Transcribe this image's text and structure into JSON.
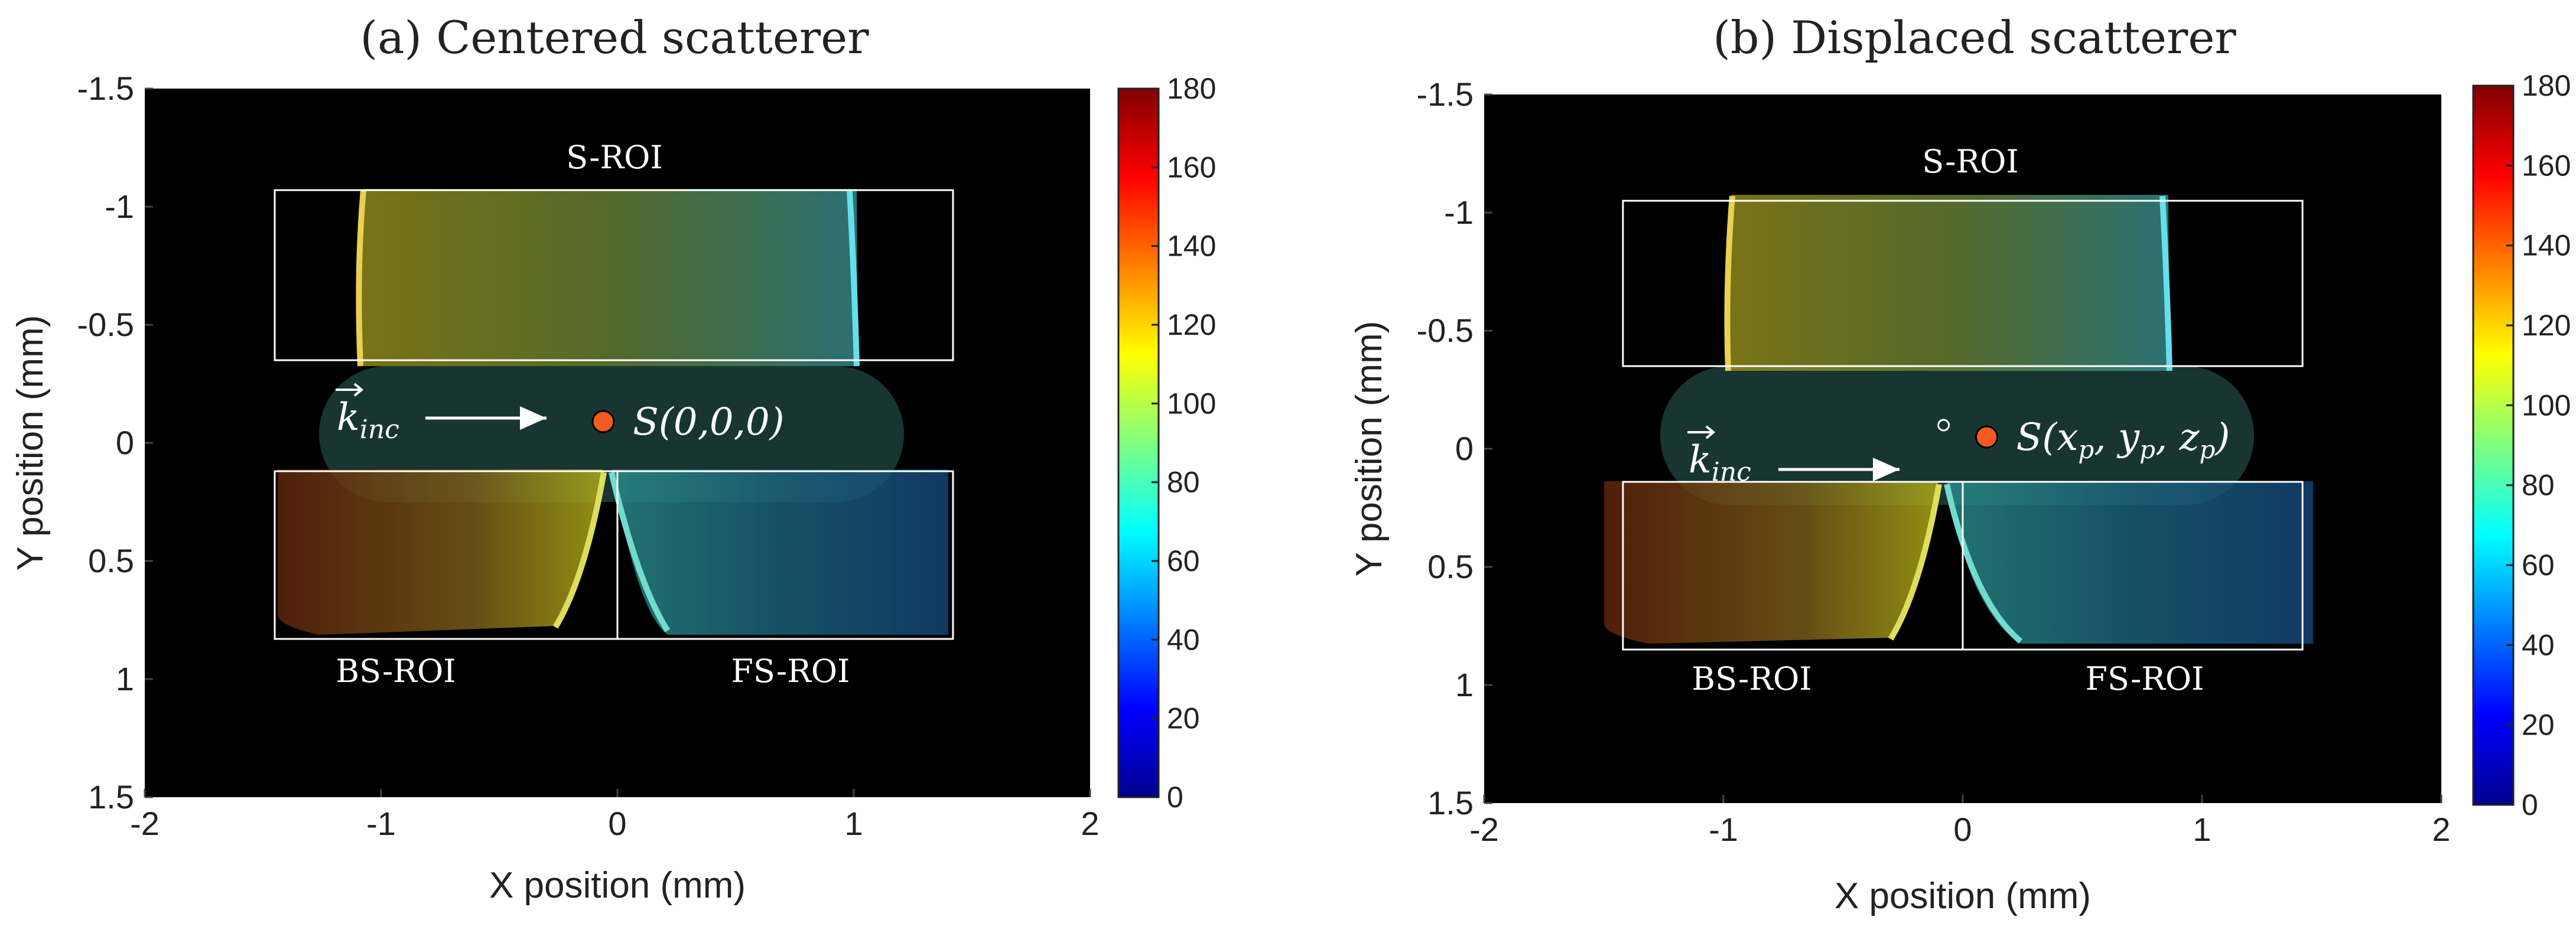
{
  "chart_data": [
    {
      "type": "heatmap",
      "title": "(a) Centered scatterer",
      "xlabel": "X position (mm)",
      "ylabel": "Y position (mm)",
      "xlim": [
        -2,
        2
      ],
      "ylim": [
        -1.5,
        1.5
      ],
      "y_axis_reversed": true,
      "xticks": [
        -2,
        -1,
        0,
        1,
        2
      ],
      "yticks": [
        -1.5,
        -1,
        -0.5,
        0,
        0.5,
        1,
        1.5
      ],
      "xtick_labels": [
        "-2",
        "-1",
        "0",
        "1",
        "2"
      ],
      "ytick_labels": [
        "-1.5",
        "-1",
        "-0.5",
        "0",
        "0.5",
        "1",
        "1.5"
      ],
      "colorbar": {
        "min": 0,
        "max": 180,
        "colormap": "jet",
        "ticks": [
          "0",
          "20",
          "40",
          "60",
          "80",
          "100",
          "120",
          "140",
          "160",
          "180"
        ]
      },
      "rois": [
        {
          "name": "S-ROI",
          "x": [
            -1.45,
            1.42
          ],
          "y": [
            -1.07,
            -0.35
          ]
        },
        {
          "name": "BS-ROI",
          "x": [
            -1.45,
            0
          ],
          "y": [
            0.12,
            0.83
          ]
        },
        {
          "name": "FS-ROI",
          "x": [
            0,
            1.42
          ],
          "y": [
            0.12,
            0.83
          ]
        }
      ],
      "roi_labels": {
        "s": "S-ROI",
        "bs": "BS-ROI",
        "fs": "FS-ROI"
      },
      "beam_label": "k_inc",
      "beam_main": "k",
      "beam_sub": "inc",
      "scatterer": {
        "x": -0.06,
        "y": -0.09,
        "label": "S(0,0,0)"
      }
    },
    {
      "type": "heatmap",
      "title": "(b) Displaced scatterer",
      "xlabel": "X position (mm)",
      "ylabel": "Y position (mm)",
      "xlim": [
        -2,
        2
      ],
      "ylim": [
        -1.5,
        1.5
      ],
      "y_axis_reversed": true,
      "xticks": [
        -2,
        -1,
        0,
        1,
        2
      ],
      "yticks": [
        -1.5,
        -1,
        -0.5,
        0,
        0.5,
        1,
        1.5
      ],
      "xtick_labels": [
        "-2",
        "-1",
        "0",
        "1",
        "2"
      ],
      "ytick_labels": [
        "-1.5",
        "-1",
        "-0.5",
        "0",
        "0.5",
        "1",
        "1.5"
      ],
      "colorbar": {
        "min": 0,
        "max": 180,
        "colormap": "jet",
        "ticks": [
          "0",
          "20",
          "40",
          "60",
          "80",
          "100",
          "120",
          "140",
          "160",
          "180"
        ]
      },
      "rois": [
        {
          "name": "S-ROI",
          "x": [
            -1.42,
            1.42
          ],
          "y": [
            -1.05,
            -0.35
          ]
        },
        {
          "name": "BS-ROI",
          "x": [
            -1.42,
            0
          ],
          "y": [
            0.14,
            0.85
          ]
        },
        {
          "name": "FS-ROI",
          "x": [
            0,
            1.42
          ],
          "y": [
            0.14,
            0.85
          ]
        }
      ],
      "roi_labels": {
        "s": "S-ROI",
        "bs": "BS-ROI",
        "fs": "FS-ROI"
      },
      "beam_label": "k_inc",
      "beam_main": "k",
      "beam_sub": "inc",
      "origin_marker": {
        "x": -0.08,
        "y": -0.1
      },
      "scatterer": {
        "x": 0.1,
        "y": -0.05,
        "label": "S(x_p, y_p, z_p)"
      },
      "scatterer_parts": {
        "s": "S(",
        "x": "x",
        "p1": "p",
        "c1": ", ",
        "y": "y",
        "p2": "p",
        "c2": ", ",
        "z": "z",
        "p3": "p",
        "close": ")"
      }
    }
  ]
}
